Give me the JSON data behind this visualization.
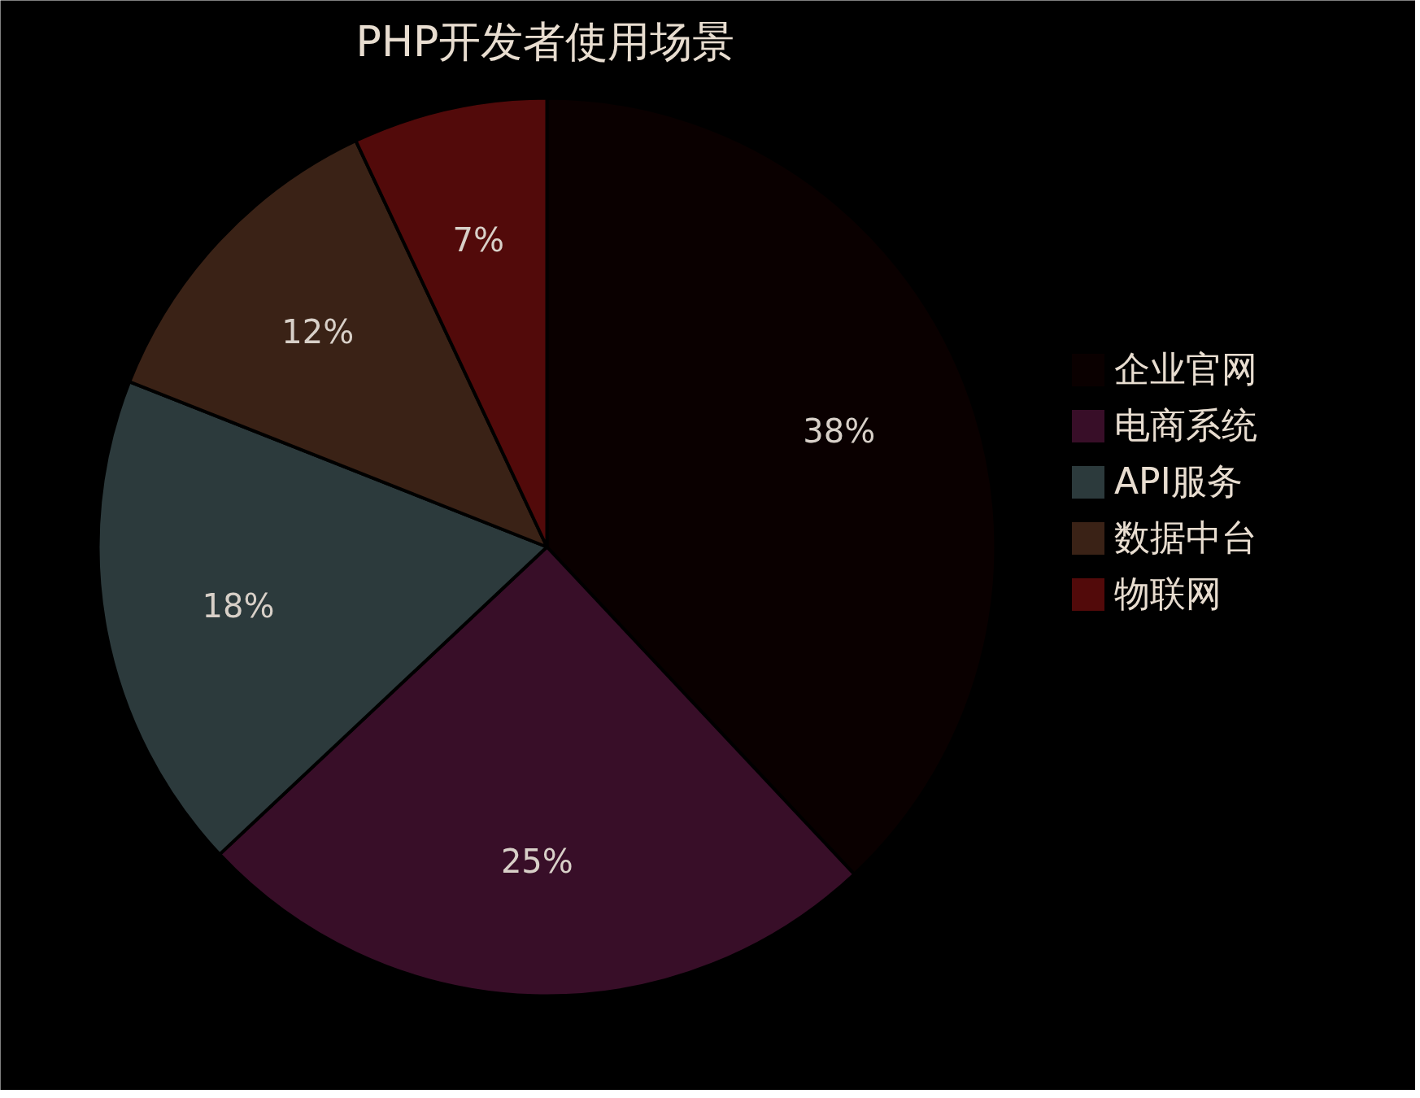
{
  "chart_data": {
    "type": "pie",
    "title": "PHP开发者使用场景",
    "categories": [
      "企业官网",
      "电商系统",
      "API服务",
      "数据中台",
      "物联网"
    ],
    "values": [
      38,
      25,
      18,
      12,
      7
    ],
    "colors": [
      "#0a0000",
      "#380e28",
      "#2c3a3c",
      "#3a2216",
      "#520a0a"
    ],
    "value_labels": [
      "38%",
      "25%",
      "18%",
      "12%",
      "7%"
    ],
    "legend": "right"
  }
}
